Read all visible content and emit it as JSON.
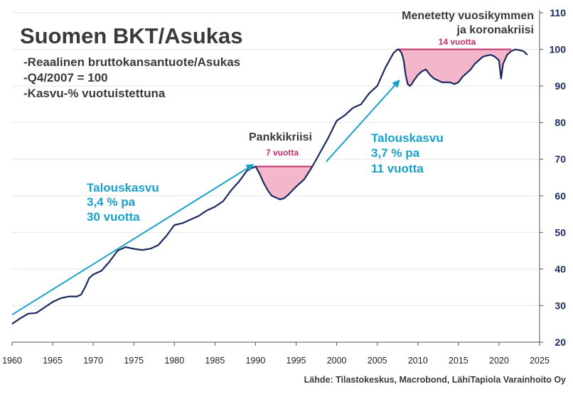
{
  "chart_data": {
    "type": "line",
    "title": "Suomen BKT/Asukas",
    "subtitle_lines": [
      "-Reaalinen bruttokansantuote/Asukas",
      "-Q4/2007 = 100",
      "-Kasvu-% vuotuistettuna"
    ],
    "xlabel": "",
    "ylabel": "",
    "xlim": [
      1960,
      2025
    ],
    "ylim": [
      20,
      110
    ],
    "x_ticks": [
      1960,
      1965,
      1970,
      1975,
      1980,
      1985,
      1990,
      1995,
      2000,
      2005,
      2010,
      2015,
      2020,
      2025
    ],
    "y_ticks": [
      20,
      30,
      40,
      50,
      60,
      70,
      80,
      90,
      100,
      110
    ],
    "y_axis_position": "right",
    "grid": "horizontal",
    "colors": {
      "line": "#1a2a5e",
      "arrow": "#1aa0c9",
      "fill": "#f4b6ca",
      "fill_edge": "#c0306a",
      "grid": "#e6e6e6",
      "text": "#3a3a3a"
    },
    "series": [
      {
        "x": [
          1960.0,
          1961.0,
          1962.0,
          1963.0,
          1964.0,
          1965.0,
          1966.0,
          1967.0,
          1968.0,
          1968.5,
          1969.0,
          1969.5,
          1970.0,
          1971.0,
          1972.0,
          1973.0,
          1974.0,
          1975.0,
          1976.0,
          1977.0,
          1978.0,
          1979.0,
          1980.0,
          1981.0,
          1982.0,
          1983.0,
          1984.0,
          1985.0,
          1986.0,
          1987.0,
          1988.0,
          1989.0,
          1990.0,
          1990.5,
          1991.0,
          1991.5,
          1992.0,
          1993.0,
          1993.5,
          1994.0,
          1995.0,
          1996.0,
          1997.0,
          1998.0,
          1999.0,
          2000.0,
          2001.0,
          2002.0,
          2003.0,
          2004.0,
          2005.0,
          2006.0,
          2007.0,
          2007.5,
          2007.75,
          2008.0,
          2008.25,
          2008.5,
          2008.75,
          2009.0,
          2009.25,
          2009.5,
          2010.0,
          2010.5,
          2011.0,
          2011.5,
          2012.0,
          2012.5,
          2013.0,
          2013.5,
          2014.0,
          2014.5,
          2015.0,
          2015.5,
          2016.0,
          2016.5,
          2017.0,
          2017.5,
          2018.0,
          2018.5,
          2019.0,
          2019.5,
          2020.0,
          2020.25,
          2020.5,
          2021.0,
          2021.5,
          2022.0,
          2022.5,
          2023.0,
          2023.5
        ],
        "values": [
          25.0,
          26.5,
          27.8,
          28.0,
          29.5,
          31.0,
          32.0,
          32.5,
          32.5,
          33.0,
          35.0,
          37.5,
          38.5,
          39.5,
          42.0,
          45.0,
          46.0,
          45.5,
          45.2,
          45.5,
          46.5,
          49.0,
          52.0,
          52.5,
          53.5,
          54.5,
          56.0,
          57.0,
          58.5,
          61.5,
          64.0,
          67.0,
          68.0,
          66.0,
          63.5,
          61.5,
          60.0,
          59.0,
          59.3,
          60.2,
          62.5,
          64.5,
          68.0,
          72.0,
          76.0,
          80.5,
          82.0,
          84.0,
          85.0,
          88.0,
          90.0,
          95.0,
          99.0,
          100.0,
          99.8,
          99.0,
          97.0,
          93.0,
          90.5,
          90.0,
          90.5,
          91.5,
          93.0,
          94.0,
          94.5,
          93.0,
          92.0,
          91.5,
          91.0,
          91.0,
          91.0,
          90.5,
          91.0,
          92.5,
          93.5,
          94.5,
          96.0,
          97.0,
          98.0,
          98.3,
          98.5,
          98.0,
          97.0,
          92.0,
          96.0,
          98.5,
          99.5,
          100.0,
          99.8,
          99.5,
          98.5
        ]
      }
    ],
    "dip_regions": [
      {
        "x_start": 1990.0,
        "x_end": 1997.0,
        "level": 68.0,
        "label": "7 vuotta"
      },
      {
        "x_start": 2007.5,
        "x_end": 2021.5,
        "level": 100.0,
        "label": "14 vuotta"
      }
    ],
    "arrows": [
      {
        "from": [
          1960,
          27.5
        ],
        "to": [
          1989.7,
          68.5
        ]
      },
      {
        "from": [
          1998.7,
          69.3
        ],
        "to": [
          2007.7,
          91.5
        ]
      }
    ],
    "annotations": {
      "growth1": [
        "Talouskasvu",
        "3,4 % pa",
        "30 vuotta"
      ],
      "growth2": [
        "Talouskasvu",
        "3,7 % pa",
        "11 vuotta"
      ],
      "crisis1": "Pankkikriisi",
      "crisis2": [
        "Menetetty vuosikymmen",
        "ja koronakriisi"
      ]
    },
    "source": "Lähde: Tilastokeskus, Macrobond, LähiTapiola Varainhoito Oy"
  }
}
